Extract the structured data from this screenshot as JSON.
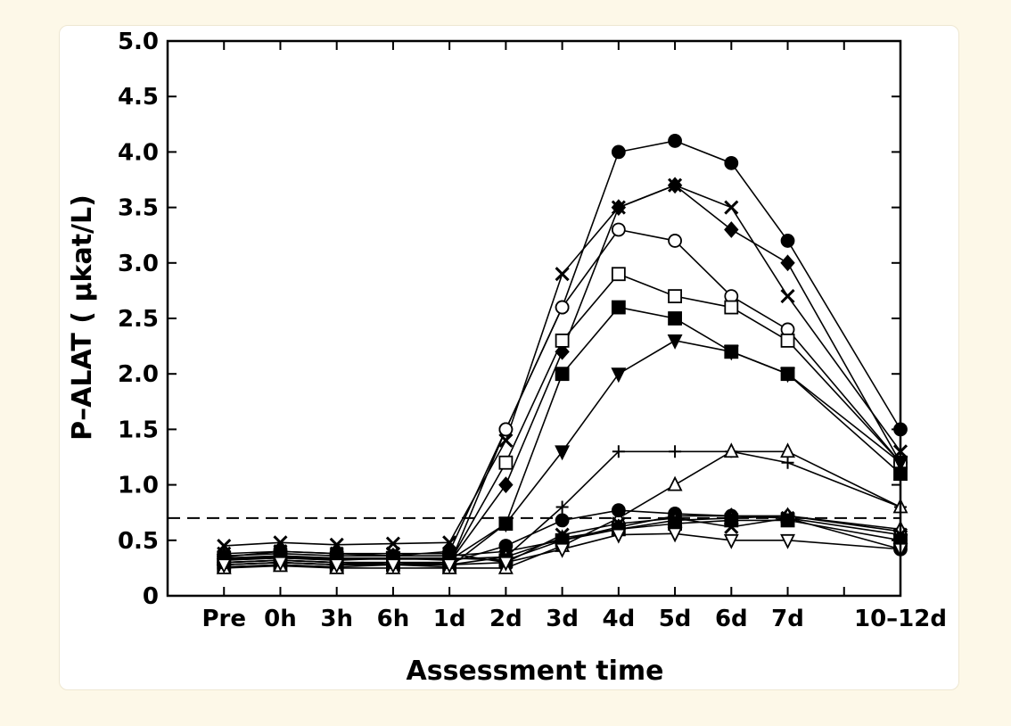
{
  "chart_data": {
    "type": "line",
    "xlabel": "Assessment time",
    "ylabel": "P–ALAT ( µkat/L)",
    "ylim": [
      0,
      5
    ],
    "yticks": [
      "0",
      "0.5",
      "1.0",
      "1.5",
      "2.0",
      "2.5",
      "3.0",
      "3.5",
      "4.0",
      "4.5",
      "5.0"
    ],
    "categories": [
      "Pre",
      "0h",
      "3h",
      "6h",
      "1d",
      "2d",
      "3d",
      "4d",
      "5d",
      "6d",
      "7d",
      "10–12d"
    ],
    "x_positions": [
      0,
      1,
      2,
      3,
      4,
      5,
      6,
      7,
      8,
      9,
      10,
      12
    ],
    "reference_line": 0.7,
    "grid": false,
    "series": [
      {
        "marker": "circle-filled",
        "values": [
          0.35,
          0.4,
          0.38,
          0.36,
          0.4,
          1.5,
          2.6,
          4.0,
          4.1,
          3.9,
          3.2,
          1.5
        ]
      },
      {
        "marker": "x",
        "values": [
          0.45,
          0.48,
          0.46,
          0.47,
          0.48,
          1.4,
          2.9,
          3.5,
          3.7,
          3.5,
          2.7,
          1.3
        ]
      },
      {
        "marker": "diamond-filled",
        "values": [
          0.3,
          0.32,
          0.3,
          0.28,
          0.3,
          1.0,
          2.2,
          3.5,
          3.7,
          3.3,
          3.0,
          1.2
        ]
      },
      {
        "marker": "circle-open",
        "values": [
          0.28,
          0.3,
          0.28,
          0.3,
          0.28,
          1.5,
          2.6,
          3.3,
          3.2,
          2.7,
          2.4,
          1.2
        ]
      },
      {
        "marker": "square-open",
        "values": [
          0.3,
          0.32,
          0.3,
          0.3,
          0.3,
          1.2,
          2.3,
          2.9,
          2.7,
          2.6,
          2.3,
          1.2
        ]
      },
      {
        "marker": "square-filled",
        "values": [
          0.26,
          0.28,
          0.26,
          0.28,
          0.26,
          0.65,
          2.0,
          2.6,
          2.5,
          2.2,
          2.0,
          1.1
        ]
      },
      {
        "marker": "triangle-down-filled",
        "values": [
          0.32,
          0.34,
          0.32,
          0.34,
          0.32,
          0.65,
          1.3,
          2.0,
          2.3,
          2.2,
          2.0,
          1.2
        ]
      },
      {
        "marker": "plus",
        "values": [
          0.28,
          0.3,
          0.28,
          0.28,
          0.28,
          0.35,
          0.8,
          1.3,
          1.3,
          1.3,
          1.2,
          0.8
        ]
      },
      {
        "marker": "triangle-up-open",
        "values": [
          0.25,
          0.27,
          0.25,
          0.25,
          0.25,
          0.25,
          0.45,
          0.7,
          1.0,
          1.3,
          1.3,
          0.8
        ]
      },
      {
        "marker": "circle-filled",
        "values": [
          0.3,
          0.32,
          0.3,
          0.3,
          0.3,
          0.45,
          0.68,
          0.77,
          0.74,
          0.72,
          0.7,
          0.42
        ]
      },
      {
        "marker": "diamond-filled",
        "values": [
          0.36,
          0.38,
          0.36,
          0.36,
          0.36,
          0.4,
          0.5,
          0.62,
          0.72,
          0.72,
          0.72,
          0.58
        ]
      },
      {
        "marker": "triangle-up-open",
        "values": [
          0.33,
          0.35,
          0.33,
          0.33,
          0.33,
          0.35,
          0.52,
          0.6,
          0.68,
          0.7,
          0.72,
          0.6
        ]
      },
      {
        "marker": "x",
        "values": [
          0.38,
          0.4,
          0.38,
          0.38,
          0.38,
          0.3,
          0.55,
          0.65,
          0.7,
          0.62,
          0.7,
          0.55
        ]
      },
      {
        "marker": "square-filled",
        "values": [
          0.34,
          0.36,
          0.34,
          0.34,
          0.34,
          0.32,
          0.5,
          0.6,
          0.65,
          0.68,
          0.68,
          0.5
        ]
      },
      {
        "marker": "triangle-down-open",
        "values": [
          0.28,
          0.3,
          0.28,
          0.28,
          0.28,
          0.3,
          0.42,
          0.55,
          0.56,
          0.5,
          0.5,
          0.42
        ]
      }
    ]
  }
}
